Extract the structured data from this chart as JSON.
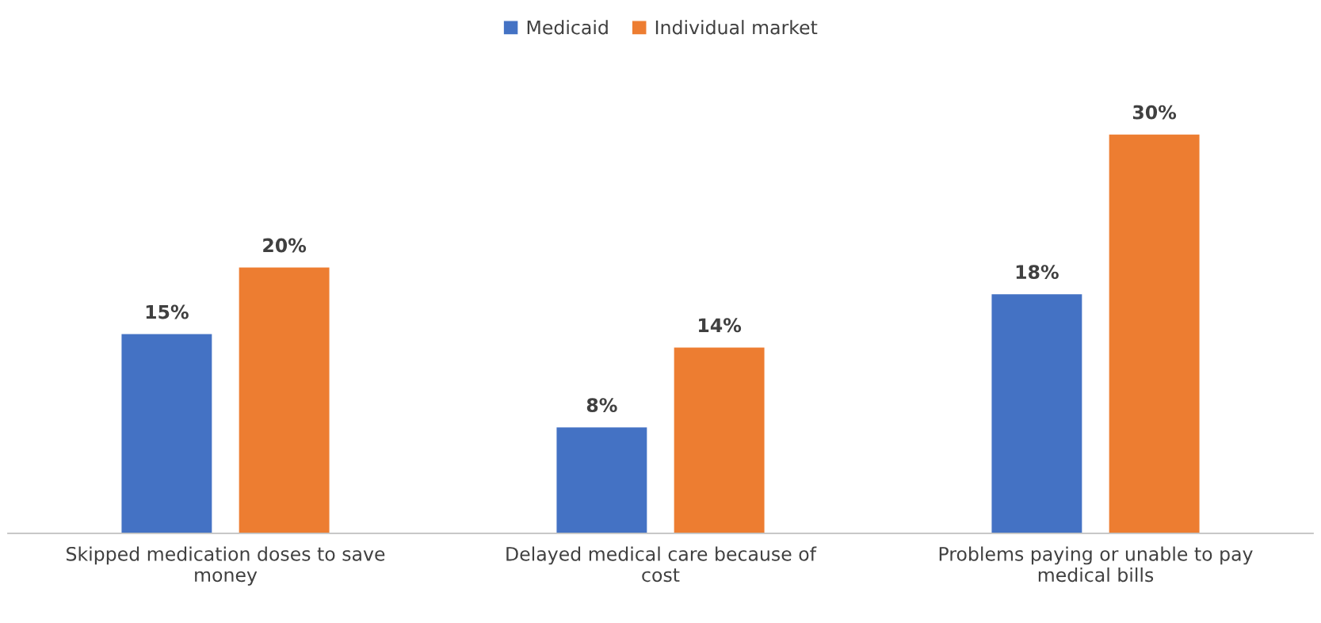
{
  "chart_data": {
    "type": "bar",
    "categories": [
      "Skipped medication doses to save\nmoney",
      "Delayed medical care because of\ncost",
      "Problems paying or unable to pay\nmedical bills"
    ],
    "series": [
      {
        "name": "Medicaid",
        "color": "#4472c4",
        "values": [
          15,
          8,
          18
        ],
        "value_labels": [
          "15%",
          "8%",
          "18%"
        ]
      },
      {
        "name": "Individual market",
        "color": "#ed7d31",
        "values": [
          20,
          14,
          30
        ],
        "value_labels": [
          "20%",
          "14%",
          "30%"
        ]
      }
    ],
    "legend": "top",
    "grid": false
  }
}
